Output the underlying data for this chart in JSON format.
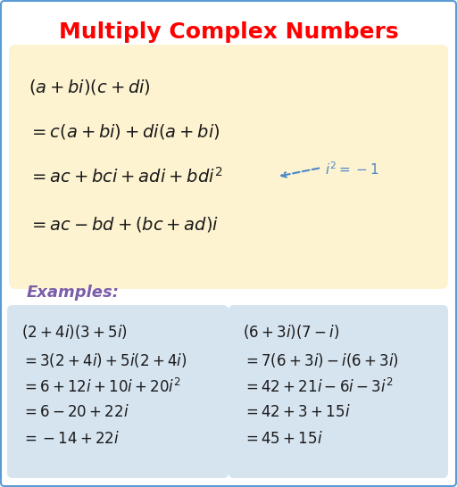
{
  "title": "Multiply Complex Numbers",
  "title_color": "#ff0000",
  "title_fontsize": 18,
  "bg_color": "#ffffff",
  "border_color": "#5b9bd5",
  "main_box_color": "#fdf3d0",
  "example_box_color": "#d6e4f0",
  "examples_label": "Examples:",
  "examples_label_color": "#7b5ea7",
  "annotation_color": "#4a86c8",
  "arrow_color": "#4a86c8",
  "formula_fontsize": 14,
  "example_fontsize": 12
}
